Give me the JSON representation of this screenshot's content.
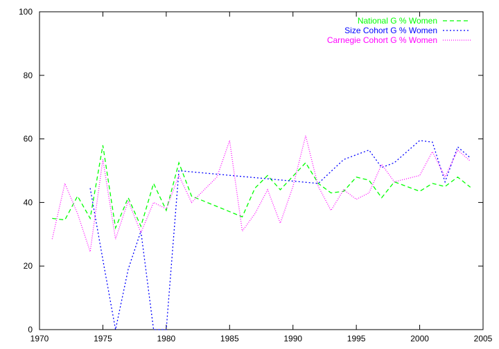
{
  "chart_data": {
    "type": "line",
    "title": "",
    "xlabel": "",
    "ylabel": "",
    "xlim": [
      1970,
      2005
    ],
    "ylim": [
      0,
      100
    ],
    "x_ticks": [
      1970,
      1975,
      1980,
      1985,
      1990,
      1995,
      2000,
      2005
    ],
    "y_ticks": [
      0,
      20,
      40,
      60,
      80,
      100
    ],
    "grid": false,
    "legend_position": "top-right",
    "series": [
      {
        "name": "National G % Women",
        "color": "#00ff00",
        "dash": "dashed",
        "points": [
          [
            1971,
            35
          ],
          [
            1972,
            34.5
          ],
          [
            1973,
            42
          ],
          [
            1974,
            35
          ],
          [
            1975,
            58
          ],
          [
            1976,
            32
          ],
          [
            1977,
            41.5
          ],
          [
            1978,
            32.5
          ],
          [
            1979,
            46
          ],
          [
            1980,
            37.5
          ],
          [
            1981,
            52.5
          ],
          [
            1982,
            42
          ],
          [
            1986,
            35.5
          ],
          [
            1987,
            44.5
          ],
          [
            1988,
            48.5
          ],
          [
            1989,
            44
          ],
          [
            1991,
            52.5
          ],
          [
            1992,
            46
          ],
          [
            1993,
            43
          ],
          [
            1994,
            43.5
          ],
          [
            1995,
            48
          ],
          [
            1996,
            47
          ],
          [
            1997,
            41.5
          ],
          [
            1998,
            46.5
          ],
          [
            2000,
            43.5
          ],
          [
            2001,
            46
          ],
          [
            2002,
            45
          ],
          [
            2003,
            48
          ],
          [
            2004,
            44.8
          ]
        ]
      },
      {
        "name": "Size Cohort G % Women",
        "color": "#0000ff",
        "dash": "dotted",
        "points": [
          [
            1974,
            44.5
          ],
          [
            1975,
            22
          ],
          [
            1976,
            0
          ],
          [
            1977,
            19
          ],
          [
            1978,
            31
          ],
          [
            1979,
            0
          ],
          [
            1980,
            0
          ],
          [
            1981,
            50
          ],
          [
            1992,
            46
          ],
          [
            1994,
            53.5
          ],
          [
            1995,
            55
          ],
          [
            1996,
            56.5
          ],
          [
            1997,
            51
          ],
          [
            1998,
            52.5
          ],
          [
            2000,
            59.5
          ],
          [
            2001,
            59
          ],
          [
            2002,
            46.5
          ],
          [
            2003,
            57.5
          ],
          [
            2004,
            54
          ]
        ]
      },
      {
        "name": "Carnegie Cohort G % Women",
        "color": "#ff00ff",
        "dash": "fine-dotted",
        "points": [
          [
            1971,
            28.5
          ],
          [
            1972,
            46
          ],
          [
            1973,
            36.5
          ],
          [
            1974,
            24.5
          ],
          [
            1975,
            53.5
          ],
          [
            1976,
            28.5
          ],
          [
            1977,
            40.5
          ],
          [
            1978,
            30.5
          ],
          [
            1979,
            40
          ],
          [
            1980,
            38
          ],
          [
            1981,
            48.5
          ],
          [
            1982,
            40
          ],
          [
            1984,
            48
          ],
          [
            1985,
            59.5
          ],
          [
            1986,
            31
          ],
          [
            1987,
            36.5
          ],
          [
            1988,
            44
          ],
          [
            1989,
            33.5
          ],
          [
            1990,
            45
          ],
          [
            1991,
            61
          ],
          [
            1992,
            45
          ],
          [
            1993,
            37.5
          ],
          [
            1994,
            44
          ],
          [
            1995,
            41
          ],
          [
            1996,
            43
          ],
          [
            1997,
            52
          ],
          [
            1998,
            46.5
          ],
          [
            2000,
            48.5
          ],
          [
            2001,
            56
          ],
          [
            2002,
            48
          ],
          [
            2003,
            56.5
          ],
          [
            2004,
            53
          ]
        ]
      }
    ]
  }
}
